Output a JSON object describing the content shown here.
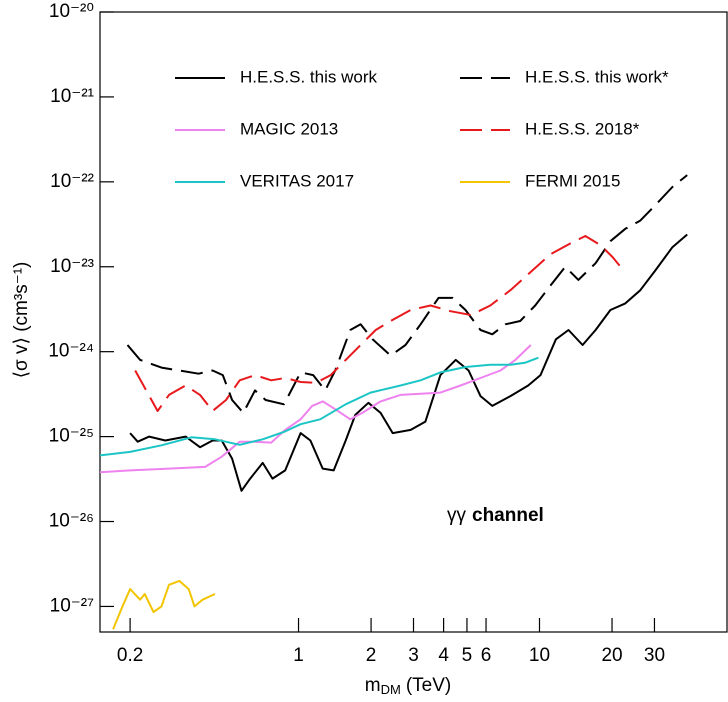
{
  "chart_data": {
    "type": "line",
    "x_label": {
      "symbol": "m",
      "subscript": "DM",
      "unit": "(TeV)"
    },
    "y_label": "⟨σ v⟩ (cm³s⁻¹)",
    "annotation": {
      "particles": "γγ",
      "text": "channel"
    },
    "log_x": true,
    "log_y": true,
    "xlim": [
      0.15,
      60
    ],
    "ylim": [
      5e-28,
      1e-20
    ],
    "xticks": [
      0.2,
      1,
      2,
      3,
      4,
      5,
      6,
      10,
      20,
      30
    ],
    "yticks": [
      {
        "value": 1e-20,
        "label": "10⁻²⁰"
      },
      {
        "value": 1e-21,
        "label": "10⁻²¹"
      },
      {
        "value": 1e-22,
        "label": "10⁻²²"
      },
      {
        "value": 1e-23,
        "label": "10⁻²³"
      },
      {
        "value": 1e-24,
        "label": "10⁻²⁴"
      },
      {
        "value": 1e-25,
        "label": "10⁻²⁵"
      },
      {
        "value": 1e-26,
        "label": "10⁻²⁶"
      },
      {
        "value": 1e-27,
        "label": "10⁻²⁷"
      }
    ],
    "legend_columns": 2,
    "series": [
      {
        "name": "H.E.S.S. this work",
        "color": "#000000",
        "dashed": false,
        "x": [
          0.2,
          0.215,
          0.24,
          0.28,
          0.34,
          0.39,
          0.44,
          0.48,
          0.53,
          0.58,
          0.63,
          0.71,
          0.78,
          0.88,
          1.02,
          1.12,
          1.26,
          1.4,
          1.57,
          1.72,
          1.95,
          2.19,
          2.46,
          2.92,
          3.36,
          3.88,
          4.49,
          5.08,
          5.69,
          6.37,
          7.57,
          8.98,
          10.1,
          11.7,
          13.2,
          15.1,
          17.1,
          19.7,
          22.7,
          26.2,
          30.2,
          35.6,
          41
        ],
        "values": [
          1.1e-25,
          8.7e-26,
          1e-25,
          9e-26,
          1e-25,
          7.5e-26,
          9e-26,
          9e-26,
          5.5e-26,
          2.3e-26,
          3.2e-26,
          4.9e-26,
          3.2e-26,
          4e-26,
          1.1e-25,
          9e-26,
          4.2e-26,
          4e-26,
          9e-26,
          1.8e-25,
          2.5e-25,
          1.9e-25,
          1.1e-25,
          1.2e-25,
          1.5e-25,
          5.3e-25,
          8e-25,
          6e-25,
          3e-25,
          2.3e-25,
          3e-25,
          4e-25,
          5.3e-25,
          1.4e-24,
          1.8e-24,
          1.2e-24,
          1.8e-24,
          3.1e-24,
          3.7e-24,
          5.3e-24,
          9e-24,
          1.7e-23,
          2.4e-23
        ]
      },
      {
        "name": "H.E.S.S. this work*",
        "color": "#000000",
        "dashed": true,
        "x": [
          0.195,
          0.22,
          0.27,
          0.32,
          0.385,
          0.44,
          0.485,
          0.53,
          0.59,
          0.66,
          0.73,
          0.87,
          1.02,
          1.15,
          1.29,
          1.42,
          1.64,
          1.81,
          2.03,
          2.41,
          2.78,
          3.21,
          3.81,
          4.36,
          4.93,
          5.69,
          6.37,
          7.22,
          8.32,
          9.6,
          11.1,
          12.8,
          14.5,
          17.1,
          19.7,
          22.7,
          26.2,
          30.2,
          35.6,
          41
        ],
        "values": [
          1.2e-24,
          8e-25,
          6.5e-25,
          6e-25,
          5.5e-25,
          6e-25,
          5.3e-25,
          2.7e-25,
          1.9e-25,
          3.5e-25,
          2.7e-25,
          2.4e-25,
          5.7e-25,
          5.3e-25,
          3.5e-25,
          6e-25,
          1.8e-24,
          2.1e-24,
          1.4e-24,
          9e-25,
          1.2e-24,
          2.1e-24,
          4.3e-24,
          4.3e-24,
          3.1e-24,
          1.8e-24,
          1.6e-24,
          2.1e-24,
          2.3e-24,
          3.5e-24,
          6e-24,
          1e-23,
          7e-24,
          1.1e-23,
          2e-23,
          2.8e-23,
          3.5e-23,
          5.3e-23,
          8.7e-23,
          1.2e-22
        ]
      },
      {
        "name": "MAGIC 2013",
        "color": "#ee82ee",
        "dashed": false,
        "x": [
          0.15,
          0.2,
          0.29,
          0.41,
          0.48,
          0.57,
          0.66,
          0.77,
          0.88,
          1.02,
          1.14,
          1.26,
          1.42,
          1.64,
          1.84,
          2.19,
          2.65,
          3.21,
          3.88,
          4.7,
          5.69,
          6.88,
          7.94,
          9.2
        ],
        "values": [
          3.8e-26,
          4e-26,
          4.2e-26,
          4.4e-26,
          5.8e-26,
          8.7e-26,
          8.7e-26,
          8.5e-26,
          1.2e-25,
          1.6e-25,
          2.3e-25,
          2.6e-25,
          2.1e-25,
          1.6e-25,
          1.9e-25,
          2.6e-25,
          3.1e-25,
          3.2e-25,
          3.3e-25,
          4e-25,
          4.9e-25,
          6e-25,
          8e-25,
          1.2e-24
        ]
      },
      {
        "name": "H.E.S.S. 2018*",
        "color": "#e8191c",
        "dashed": true,
        "x": [
          0.21,
          0.26,
          0.29,
          0.34,
          0.39,
          0.44,
          0.5,
          0.57,
          0.66,
          0.77,
          0.88,
          1.02,
          1.18,
          1.36,
          1.57,
          1.81,
          2.09,
          2.41,
          2.92,
          3.53,
          4.27,
          5.2,
          6.25,
          7.57,
          9.2,
          11.1,
          13.5,
          15.5,
          17.9,
          20.1,
          21.7
        ],
        "values": [
          6e-25,
          2e-25,
          3.1e-25,
          4e-25,
          3.1e-25,
          2e-25,
          2.7e-25,
          4.6e-25,
          5.3e-25,
          4.6e-25,
          4.9e-25,
          4.4e-25,
          4.3e-25,
          5.3e-25,
          8e-25,
          1.2e-24,
          1.8e-24,
          2.3e-24,
          3.1e-24,
          3.5e-24,
          3e-24,
          2.7e-24,
          3.5e-24,
          5.3e-24,
          8.7e-24,
          1.4e-23,
          1.9e-23,
          2.3e-23,
          1.8e-23,
          1.3e-23,
          1e-23
        ]
      },
      {
        "name": "VERITAS 2017",
        "color": "#1cc5c5",
        "dashed": false,
        "x": [
          0.15,
          0.2,
          0.27,
          0.36,
          0.45,
          0.57,
          0.71,
          0.88,
          1.02,
          1.23,
          1.57,
          1.99,
          2.65,
          3.21,
          3.88,
          4.93,
          6.25,
          7.57,
          8.7,
          9.9
        ],
        "values": [
          6e-26,
          6.6e-26,
          7.9e-26,
          9.8e-26,
          9.3e-26,
          8e-26,
          9.3e-26,
          1.15e-25,
          1.4e-25,
          1.6e-25,
          2.4e-25,
          3.3e-25,
          4e-25,
          4.6e-25,
          5.7e-25,
          6.6e-25,
          7e-25,
          7e-25,
          7.4e-25,
          8.5e-25
        ]
      },
      {
        "name": "FERMI 2015",
        "color": "#f2c500",
        "dashed": false,
        "x": [
          0.17,
          0.186,
          0.2,
          0.22,
          0.23,
          0.25,
          0.27,
          0.29,
          0.32,
          0.35,
          0.37,
          0.4,
          0.45
        ],
        "values": [
          5.4e-28,
          1e-27,
          1.6e-27,
          1.2e-27,
          1.4e-27,
          8.6e-28,
          1e-27,
          1.8e-27,
          2e-27,
          1.6e-27,
          1e-27,
          1.2e-27,
          1.4e-27
        ]
      }
    ]
  }
}
